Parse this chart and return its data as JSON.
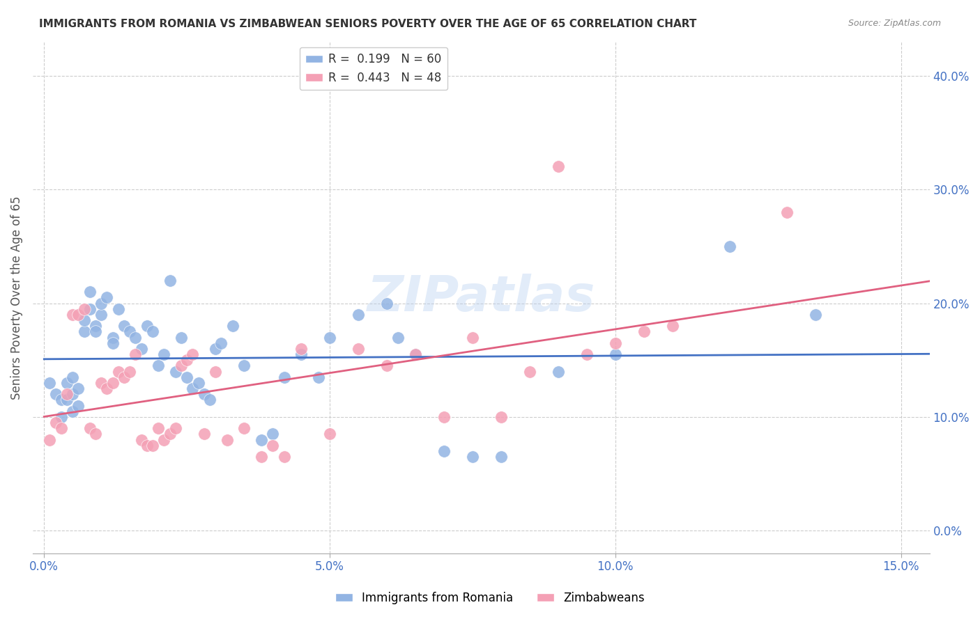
{
  "title": "IMMIGRANTS FROM ROMANIA VS ZIMBABWEAN SENIORS POVERTY OVER THE AGE OF 65 CORRELATION CHART",
  "source": "Source: ZipAtlas.com",
  "xlabel_ticks": [
    "0.0%",
    "5.0%",
    "10.0%",
    "15.0%"
  ],
  "xlabel_tick_vals": [
    0.0,
    0.05,
    0.1,
    0.15
  ],
  "ylabel": "Seniors Poverty Over the Age of 65",
  "ylabel_ticks": [
    "0.0%",
    "10.0%",
    "20.0%",
    "30.0%",
    "40.0%"
  ],
  "ylabel_tick_vals": [
    0.0,
    0.1,
    0.2,
    0.3,
    0.4
  ],
  "xlim": [
    -0.002,
    0.155
  ],
  "ylim": [
    -0.02,
    0.43
  ],
  "legend1_label": "R =  0.199   N = 60",
  "legend2_label": "R =  0.443   N = 48",
  "legend_labels": [
    "Immigrants from Romania",
    "Zimbabweans"
  ],
  "color_blue": "#92b4e3",
  "color_pink": "#f4a0b5",
  "line_blue": "#4472c4",
  "line_pink": "#e06080",
  "title_color": "#222222",
  "axis_label_color": "#4472c4",
  "watermark": "ZIPatlas",
  "romania_x": [
    0.001,
    0.002,
    0.003,
    0.003,
    0.004,
    0.004,
    0.005,
    0.005,
    0.005,
    0.006,
    0.006,
    0.007,
    0.007,
    0.008,
    0.008,
    0.009,
    0.009,
    0.01,
    0.01,
    0.011,
    0.012,
    0.012,
    0.013,
    0.014,
    0.015,
    0.016,
    0.017,
    0.018,
    0.019,
    0.02,
    0.021,
    0.022,
    0.023,
    0.024,
    0.025,
    0.026,
    0.027,
    0.028,
    0.029,
    0.03,
    0.031,
    0.033,
    0.035,
    0.038,
    0.04,
    0.042,
    0.045,
    0.048,
    0.05,
    0.055,
    0.06,
    0.062,
    0.065,
    0.07,
    0.075,
    0.08,
    0.09,
    0.1,
    0.12,
    0.135
  ],
  "romania_y": [
    0.13,
    0.12,
    0.115,
    0.1,
    0.115,
    0.13,
    0.105,
    0.12,
    0.135,
    0.11,
    0.125,
    0.175,
    0.185,
    0.21,
    0.195,
    0.18,
    0.175,
    0.19,
    0.2,
    0.205,
    0.17,
    0.165,
    0.195,
    0.18,
    0.175,
    0.17,
    0.16,
    0.18,
    0.175,
    0.145,
    0.155,
    0.22,
    0.14,
    0.17,
    0.135,
    0.125,
    0.13,
    0.12,
    0.115,
    0.16,
    0.165,
    0.18,
    0.145,
    0.08,
    0.085,
    0.135,
    0.155,
    0.135,
    0.17,
    0.19,
    0.2,
    0.17,
    0.155,
    0.07,
    0.065,
    0.065,
    0.14,
    0.155,
    0.25,
    0.19
  ],
  "zimbabwe_x": [
    0.001,
    0.002,
    0.003,
    0.004,
    0.005,
    0.006,
    0.007,
    0.008,
    0.009,
    0.01,
    0.011,
    0.012,
    0.013,
    0.014,
    0.015,
    0.016,
    0.017,
    0.018,
    0.019,
    0.02,
    0.021,
    0.022,
    0.023,
    0.024,
    0.025,
    0.026,
    0.028,
    0.03,
    0.032,
    0.035,
    0.038,
    0.04,
    0.042,
    0.045,
    0.05,
    0.055,
    0.06,
    0.065,
    0.07,
    0.075,
    0.08,
    0.085,
    0.09,
    0.095,
    0.1,
    0.105,
    0.11,
    0.13
  ],
  "zimbabwe_y": [
    0.08,
    0.095,
    0.09,
    0.12,
    0.19,
    0.19,
    0.195,
    0.09,
    0.085,
    0.13,
    0.125,
    0.13,
    0.14,
    0.135,
    0.14,
    0.155,
    0.08,
    0.075,
    0.075,
    0.09,
    0.08,
    0.085,
    0.09,
    0.145,
    0.15,
    0.155,
    0.085,
    0.14,
    0.08,
    0.09,
    0.065,
    0.075,
    0.065,
    0.16,
    0.085,
    0.16,
    0.145,
    0.155,
    0.1,
    0.17,
    0.1,
    0.14,
    0.32,
    0.155,
    0.165,
    0.175,
    0.18,
    0.28
  ]
}
